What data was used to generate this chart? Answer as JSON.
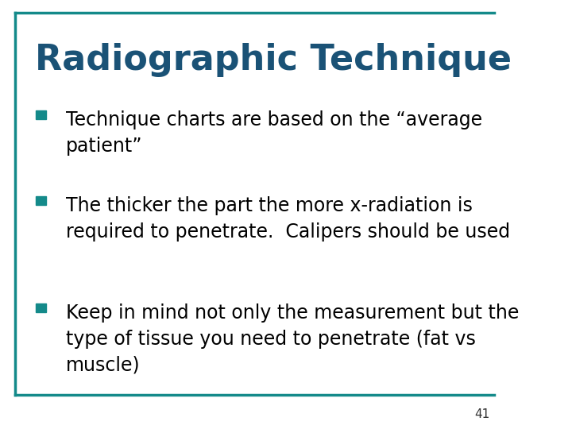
{
  "title": "Radiographic Technique",
  "title_color": "#1a5276",
  "title_fontsize": 32,
  "accent_color": "#148a8a",
  "background_color": "#ffffff",
  "bullet_color": "#148a8a",
  "bullet_text_color": "#000000",
  "bullet_fontsize": 17,
  "slide_number": "41",
  "bullets": [
    "Technique charts are based on the “average\npatient”",
    "The thicker the part the more x-radiation is\nrequired to penetrate.  Calipers should be used",
    "Keep in mind not only the measurement but the\ntype of tissue you need to penetrate (fat vs\nmuscle)"
  ]
}
